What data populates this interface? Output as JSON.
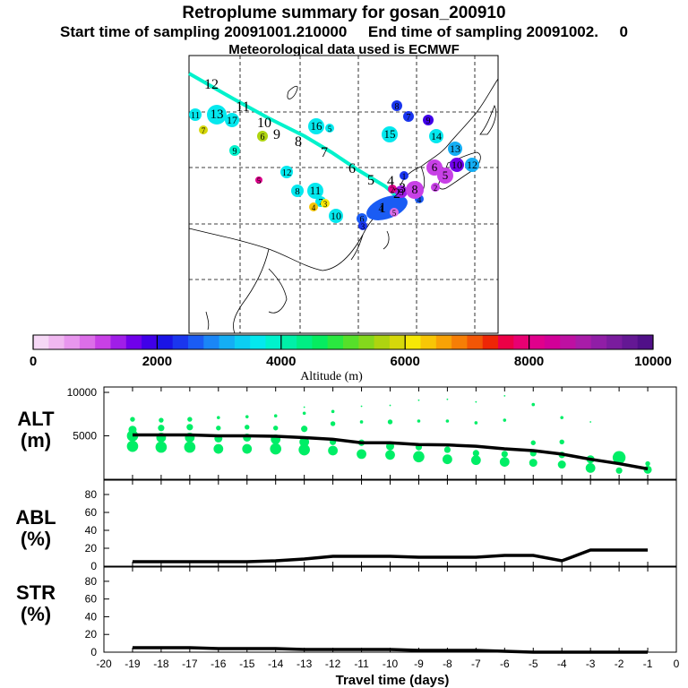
{
  "title": {
    "line1": "Retroplume summary for gosan_200910",
    "line2": "Start time of sampling 20091001.210000     End time of sampling 20091002.     0",
    "line3": "Meteorological data used is ECMWF"
  },
  "colorbar": {
    "ticks": [
      "0",
      "2000",
      "4000",
      "6000",
      "8000",
      "10000"
    ],
    "label": "Altitude  (m)",
    "colors": [
      "#f6d8f6",
      "#f0b8f0",
      "#e896ee",
      "#dc6ee8",
      "#c840e6",
      "#a01ee8",
      "#7000ea",
      "#4000e8",
      "#1a14e6",
      "#1a36ee",
      "#1a5cf4",
      "#1a86f6",
      "#14aef4",
      "#0ccef2",
      "#04e8ee",
      "#00f2cc",
      "#00f0a8",
      "#00ee84",
      "#06ec60",
      "#2ae840",
      "#56e02a",
      "#84d81c",
      "#aed410",
      "#d6d80a",
      "#f6e806",
      "#f8c606",
      "#f8a206",
      "#f67e06",
      "#f25606",
      "#ee2606",
      "#ec0046",
      "#e80072",
      "#e0008c",
      "#d20098",
      "#be10a2",
      "#a81ca8",
      "#901ea6",
      "#7a1c9e",
      "#641894",
      "#501088"
    ]
  },
  "map": {
    "plume_labels": [
      {
        "text": "12",
        "c": "#000000"
      },
      {
        "text": "11",
        "c": "#000000"
      },
      {
        "text": "10",
        "c": "#000000"
      },
      {
        "text": "9",
        "c": "#000000"
      },
      {
        "text": "8",
        "c": "#000000"
      },
      {
        "text": "7",
        "c": "#000000"
      },
      {
        "text": "6",
        "c": "#000000"
      },
      {
        "text": "5",
        "c": "#000000"
      },
      {
        "text": "4",
        "c": "#000000"
      },
      {
        "text": "3",
        "c": "#000000"
      },
      {
        "text": "2",
        "c": "#000000"
      },
      {
        "text": "1",
        "c": "#000000"
      }
    ],
    "clusters": [
      {
        "t": "11",
        "c": "#04e8ee"
      },
      {
        "t": "13",
        "c": "#04e8ee"
      },
      {
        "t": "17",
        "c": "#04e8ee"
      },
      {
        "t": "7",
        "c": "#d6d80a"
      },
      {
        "t": "6",
        "c": "#aed410"
      },
      {
        "t": "9",
        "c": "#00f2cc"
      },
      {
        "t": "16",
        "c": "#04e8ee"
      },
      {
        "t": "5",
        "c": "#04e8ee"
      },
      {
        "t": "12",
        "c": "#04e8ee"
      },
      {
        "t": "8",
        "c": "#04e8ee"
      },
      {
        "t": "11",
        "c": "#04e8ee"
      },
      {
        "t": "7",
        "c": "#04e8ee"
      },
      {
        "t": "4",
        "c": "#f8c606"
      },
      {
        "t": "3",
        "c": "#f6e806"
      },
      {
        "t": "10",
        "c": "#04e8ee"
      },
      {
        "t": "6",
        "c": "#1a5cf4"
      },
      {
        "t": "3",
        "c": "#1a36ee"
      },
      {
        "t": "5",
        "c": "#e0008c"
      },
      {
        "t": "4",
        "c": "#1a5cf4"
      },
      {
        "t": "15",
        "c": "#04e8ee"
      },
      {
        "t": "8",
        "c": "#1a36ee"
      },
      {
        "t": "7",
        "c": "#1a36ee"
      },
      {
        "t": "9",
        "c": "#4000e8"
      },
      {
        "t": "14",
        "c": "#04e8ee"
      },
      {
        "t": "13",
        "c": "#14aef4"
      },
      {
        "t": "12",
        "c": "#14aef4"
      },
      {
        "t": "10",
        "c": "#7000ea"
      },
      {
        "t": "6",
        "c": "#c840e6"
      },
      {
        "t": "5",
        "c": "#c840e6"
      },
      {
        "t": "2",
        "c": "#c840e6"
      },
      {
        "t": "1",
        "c": "#1a36ee"
      },
      {
        "t": "3",
        "c": "#a01ee8"
      },
      {
        "t": "2",
        "c": "#e0008c"
      },
      {
        "t": "4",
        "c": "#1a5cf4"
      },
      {
        "t": "8",
        "c": "#c840e6"
      },
      {
        "t": "5",
        "c": "#dc6ee8"
      }
    ]
  },
  "alt_label": "ALT\n(m)",
  "abl_label": "ABL\n(%)",
  "str_label": "STR\n(%)",
  "chart_data": [
    {
      "type": "line",
      "panel": "ALT",
      "title": "",
      "ylabel": "ALT (m)",
      "ylim": [
        0,
        10000
      ],
      "yticks": [
        "5000",
        "10000"
      ],
      "x": [
        -19,
        -18,
        -17,
        -16,
        -15,
        -14,
        -13,
        -12,
        -11,
        -10,
        -9,
        -8,
        -7,
        -6,
        -5,
        -4,
        -3,
        -2,
        -1
      ],
      "values": [
        5100,
        5100,
        5100,
        5000,
        5000,
        4950,
        4800,
        4600,
        4200,
        4200,
        4000,
        3950,
        3800,
        3500,
        3300,
        2900,
        2300,
        1800,
        1200
      ],
      "scatter_color": "#00ee66",
      "scatter": [
        {
          "x": -19,
          "y": 3800,
          "s": 7
        },
        {
          "x": -19,
          "y": 5000,
          "s": 7
        },
        {
          "x": -19,
          "y": 5700,
          "s": 5
        },
        {
          "x": -19,
          "y": 6900,
          "s": 3
        },
        {
          "x": -18,
          "y": 3700,
          "s": 7
        },
        {
          "x": -18,
          "y": 4800,
          "s": 6
        },
        {
          "x": -18,
          "y": 5900,
          "s": 4
        },
        {
          "x": -18,
          "y": 6800,
          "s": 3
        },
        {
          "x": -17,
          "y": 3700,
          "s": 7
        },
        {
          "x": -17,
          "y": 4800,
          "s": 6
        },
        {
          "x": -17,
          "y": 6000,
          "s": 4
        },
        {
          "x": -17,
          "y": 6900,
          "s": 3
        },
        {
          "x": -16,
          "y": 3500,
          "s": 6
        },
        {
          "x": -16,
          "y": 4700,
          "s": 5
        },
        {
          "x": -16,
          "y": 5900,
          "s": 3
        },
        {
          "x": -16,
          "y": 7100,
          "s": 2
        },
        {
          "x": -15,
          "y": 3500,
          "s": 6
        },
        {
          "x": -15,
          "y": 4800,
          "s": 5
        },
        {
          "x": -15,
          "y": 6000,
          "s": 3
        },
        {
          "x": -15,
          "y": 7200,
          "s": 2
        },
        {
          "x": -14,
          "y": 3500,
          "s": 7
        },
        {
          "x": -14,
          "y": 4600,
          "s": 6
        },
        {
          "x": -14,
          "y": 5900,
          "s": 3
        },
        {
          "x": -14,
          "y": 7300,
          "s": 2
        },
        {
          "x": -13,
          "y": 3400,
          "s": 7
        },
        {
          "x": -13,
          "y": 4300,
          "s": 6
        },
        {
          "x": -13,
          "y": 5800,
          "s": 4
        },
        {
          "x": -13,
          "y": 7600,
          "s": 2
        },
        {
          "x": -13,
          "y": 8300,
          "s": 1
        },
        {
          "x": -12,
          "y": 3300,
          "s": 6
        },
        {
          "x": -12,
          "y": 4300,
          "s": 4
        },
        {
          "x": -12,
          "y": 6400,
          "s": 3
        },
        {
          "x": -12,
          "y": 7800,
          "s": 2
        },
        {
          "x": -11,
          "y": 2900,
          "s": 6
        },
        {
          "x": -11,
          "y": 4200,
          "s": 4
        },
        {
          "x": -11,
          "y": 6600,
          "s": 2
        },
        {
          "x": -11,
          "y": 8400,
          "s": 1
        },
        {
          "x": -10,
          "y": 2800,
          "s": 6
        },
        {
          "x": -10,
          "y": 3800,
          "s": 5
        },
        {
          "x": -10,
          "y": 6600,
          "s": 3
        },
        {
          "x": -10,
          "y": 8500,
          "s": 1
        },
        {
          "x": -9,
          "y": 2600,
          "s": 7
        },
        {
          "x": -9,
          "y": 3700,
          "s": 4
        },
        {
          "x": -9,
          "y": 6700,
          "s": 2
        },
        {
          "x": -9,
          "y": 9100,
          "s": 1
        },
        {
          "x": -8,
          "y": 2300,
          "s": 6
        },
        {
          "x": -8,
          "y": 3400,
          "s": 4
        },
        {
          "x": -8,
          "y": 6700,
          "s": 2
        },
        {
          "x": -8,
          "y": 9200,
          "s": 1
        },
        {
          "x": -7,
          "y": 2200,
          "s": 6
        },
        {
          "x": -7,
          "y": 3000,
          "s": 4
        },
        {
          "x": -7,
          "y": 6500,
          "s": 2
        },
        {
          "x": -7,
          "y": 8900,
          "s": 1
        },
        {
          "x": -6,
          "y": 2000,
          "s": 6
        },
        {
          "x": -6,
          "y": 2900,
          "s": 4
        },
        {
          "x": -6,
          "y": 6800,
          "s": 2
        },
        {
          "x": -6,
          "y": 9600,
          "s": 1
        },
        {
          "x": -5,
          "y": 1900,
          "s": 5
        },
        {
          "x": -5,
          "y": 3000,
          "s": 4
        },
        {
          "x": -5,
          "y": 4200,
          "s": 3
        },
        {
          "x": -5,
          "y": 8600,
          "s": 2
        },
        {
          "x": -4,
          "y": 1700,
          "s": 5
        },
        {
          "x": -4,
          "y": 2800,
          "s": 4
        },
        {
          "x": -4,
          "y": 4300,
          "s": 3
        },
        {
          "x": -4,
          "y": 7100,
          "s": 2
        },
        {
          "x": -3,
          "y": 1300,
          "s": 6
        },
        {
          "x": -3,
          "y": 2300,
          "s": 5
        },
        {
          "x": -3,
          "y": 6600,
          "s": 1
        },
        {
          "x": -2,
          "y": 1000,
          "s": 4
        },
        {
          "x": -2,
          "y": 2500,
          "s": 8
        },
        {
          "x": -1,
          "y": 1100,
          "s": 5
        },
        {
          "x": -1,
          "y": 1800,
          "s": 3
        }
      ]
    },
    {
      "type": "line",
      "panel": "ABL",
      "ylabel": "ABL (%)",
      "ylim": [
        0,
        90
      ],
      "yticks": [
        "0",
        "20",
        "40",
        "60",
        "80"
      ],
      "x": [
        -19,
        -18,
        -17,
        -16,
        -15,
        -14,
        -13,
        -12,
        -11,
        -10,
        -9,
        -8,
        -7,
        -6,
        -5,
        -4,
        -3,
        -2,
        -1
      ],
      "values": [
        5,
        5,
        5,
        5,
        5,
        6,
        8,
        11,
        11,
        11,
        10,
        10,
        10,
        12,
        12,
        6,
        18,
        18,
        18
      ]
    },
    {
      "type": "line",
      "panel": "STR",
      "xlabel": "Travel time (days)",
      "ylabel": "STR (%)",
      "ylim": [
        0,
        90
      ],
      "yticks": [
        "0",
        "20",
        "40",
        "60",
        "80"
      ],
      "xticks": [
        "-20",
        "-19",
        "-18",
        "-17",
        "-16",
        "-15",
        "-14",
        "-13",
        "-12",
        "-11",
        "-10",
        "-9",
        "-8",
        "-7",
        "-6",
        "-5",
        "-4",
        "-3",
        "-2",
        "-1",
        "0"
      ],
      "x": [
        -19,
        -18,
        -17,
        -16,
        -15,
        -14,
        -13,
        -12,
        -11,
        -10,
        -9,
        -8,
        -7,
        -6,
        -5,
        -4,
        -3,
        -2,
        -1
      ],
      "values": [
        5,
        5,
        5,
        4,
        4,
        4,
        3,
        3,
        3,
        3,
        2,
        2,
        2,
        1,
        0,
        0,
        0,
        0,
        0
      ]
    }
  ]
}
